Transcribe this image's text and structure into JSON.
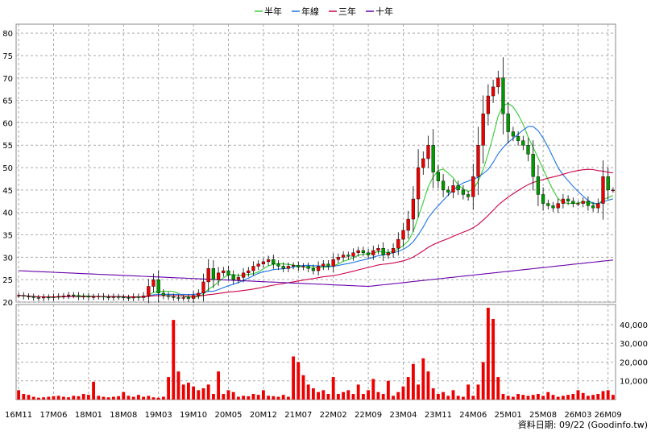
{
  "chart_data": [
    {
      "type": "candlestick",
      "legend": [
        {
          "name": "半年",
          "color": "#33cc33"
        },
        {
          "name": "年線",
          "color": "#1a73e8"
        },
        {
          "name": "三年",
          "color": "#cc0044"
        },
        {
          "name": "十年",
          "color": "#6600aa"
        }
      ],
      "ylim": [
        20,
        82
      ],
      "yticks": [
        20,
        25,
        30,
        35,
        40,
        45,
        50,
        55,
        60,
        65,
        70,
        75,
        80
      ],
      "xlim": [
        0,
        119
      ],
      "xticks": [
        {
          "label": "16M11",
          "x": 0
        },
        {
          "label": "17M06",
          "x": 7
        },
        {
          "label": "18M01",
          "x": 14
        },
        {
          "label": "18M08",
          "x": 21
        },
        {
          "label": "19M03",
          "x": 28
        },
        {
          "label": "19M10",
          "x": 35
        },
        {
          "label": "20M05",
          "x": 42
        },
        {
          "label": "20M12",
          "x": 49
        },
        {
          "label": "21M07",
          "x": 56
        },
        {
          "label": "22M02",
          "x": 63
        },
        {
          "label": "22M09",
          "x": 70
        },
        {
          "label": "23M04",
          "x": 77
        },
        {
          "label": "23M11",
          "x": 84
        },
        {
          "label": "24M06",
          "x": 91
        },
        {
          "label": "25M01",
          "x": 98
        },
        {
          "label": "25M08",
          "x": 105
        },
        {
          "label": "26M03",
          "x": 112
        },
        {
          "label": "26M09",
          "x": 118
        }
      ],
      "close": [
        21.5,
        21.3,
        21.2,
        21.0,
        20.9,
        21.1,
        21.0,
        21.2,
        21.3,
        21.4,
        21.6,
        21.5,
        21.2,
        21.3,
        21.1,
        21.2,
        21.3,
        21.1,
        21.0,
        21.2,
        21.1,
        21.0,
        20.9,
        21.2,
        21.0,
        21.4,
        23.5,
        25.0,
        22.0,
        21.5,
        21.2,
        21.0,
        20.9,
        21.0,
        20.8,
        21.5,
        22.0,
        24.5,
        27.5,
        25.0,
        26.5,
        27.0,
        26.0,
        25.0,
        25.5,
        26.5,
        27.0,
        28.0,
        28.5,
        29.0,
        29.5,
        28.5,
        28.0,
        27.5,
        28.0,
        28.2,
        27.8,
        28.0,
        27.5,
        27.0,
        28.0,
        28.5,
        28.0,
        29.5,
        30.0,
        30.5,
        30.2,
        31.0,
        31.5,
        31.0,
        30.5,
        31.5,
        32.0,
        30.5,
        31.0,
        32.0,
        34.0,
        36.0,
        38.5,
        43.0,
        50.0,
        52.0,
        55.0,
        49.0,
        47.0,
        45.0,
        44.5,
        46.0,
        45.0,
        44.0,
        43.5,
        48.0,
        55.0,
        62.0,
        66.0,
        68.0,
        70.0,
        62.0,
        58.0,
        57.0,
        56.0,
        55.0,
        53.0,
        48.0,
        44.0,
        42.0,
        41.5,
        41.0,
        42.0,
        43.0,
        42.5,
        42.0,
        42.0,
        42.5,
        41.5,
        41.0,
        42.0,
        48.0,
        45.0,
        45.0
      ],
      "volume": [
        5000,
        3000,
        2500,
        1500,
        1000,
        1200,
        1500,
        1800,
        2000,
        1500,
        1200,
        2000,
        1800,
        3000,
        2500,
        9500,
        2000,
        1500,
        1200,
        1500,
        1800,
        4000,
        2000,
        1500,
        2500,
        1500,
        2000,
        1200,
        1000,
        1500,
        12000,
        42500,
        15000,
        8000,
        9000,
        7000,
        5000,
        6000,
        8000,
        3000,
        15000,
        3000,
        5000,
        4000,
        1500,
        2000,
        1800,
        3000,
        2500,
        5000,
        2000,
        1800,
        1500,
        2500,
        1500,
        23000,
        20000,
        13000,
        8000,
        6000,
        4000,
        5000,
        3000,
        12000,
        3000,
        4000,
        5000,
        3000,
        8000,
        3000,
        5000,
        11000,
        4000,
        3000,
        10000,
        2000,
        4000,
        7000,
        12000,
        19000,
        8000,
        22000,
        15000,
        6000,
        3000,
        4000,
        2000,
        5000,
        2000,
        1500,
        8000,
        2000,
        8000,
        20000,
        49000,
        43000,
        12000,
        3000,
        2000,
        1500,
        3000,
        2500,
        2000,
        2500,
        3000,
        2000,
        4000,
        2500,
        1500,
        2000,
        2500,
        3000,
        5000,
        3500,
        2000,
        2500,
        3000,
        4500,
        5000,
        2500
      ]
    }
  ],
  "volume_axis": {
    "ticks": [
      "10,000",
      "20,000",
      "30,000",
      "40,000"
    ],
    "values": [
      10000,
      20000,
      30000,
      40000
    ],
    "max": 49000
  },
  "footer": "資料日期: 09/22 (Goodinfo.tw)"
}
